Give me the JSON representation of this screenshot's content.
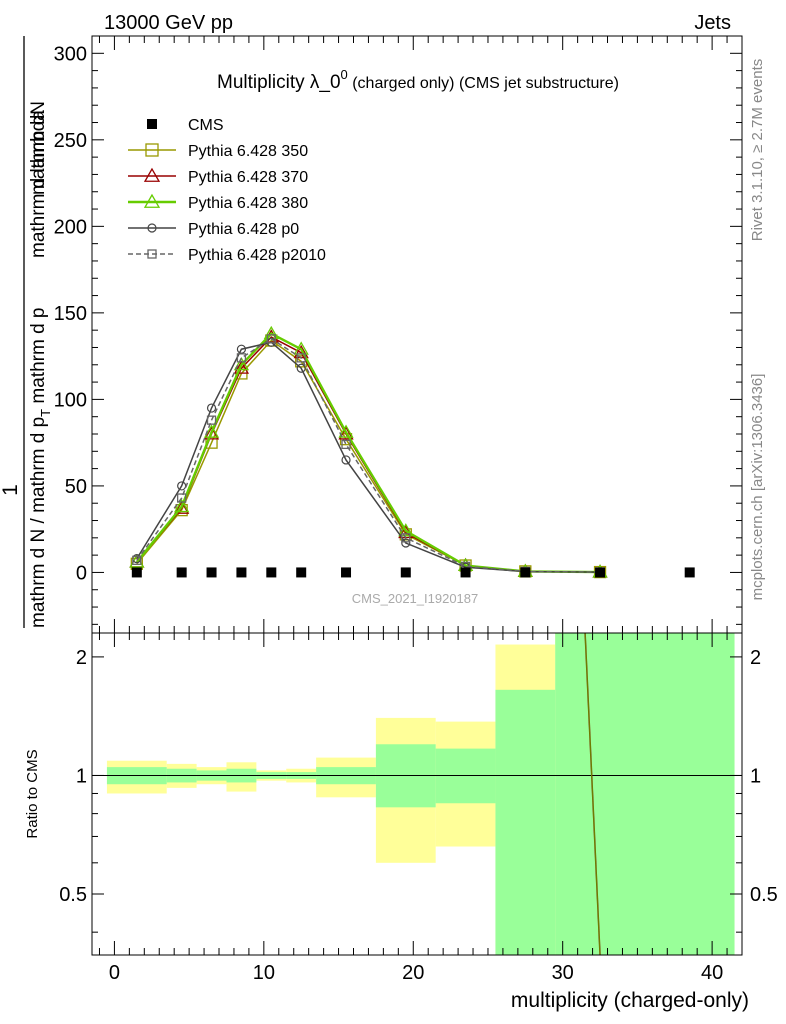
{
  "header": {
    "left": "13000 GeV pp",
    "right": "Jets"
  },
  "side_labels": {
    "rivet": "Rivet 3.1.10, ≥ 2.7M events",
    "mcplots": "mcplots.cern.ch [arXiv:1306.3436]"
  },
  "chart_data": [
    {
      "type": "line",
      "title_main": "Multiplicity λ_0",
      "title_sup": "0",
      "title_suffix": " (charged only) (CMS jet substructure)",
      "watermark": "CMS_2021_I1920187",
      "ylabel_numerator": "mathrm dN",
      "ylabel_denominator": "mathrm d N / mathrm d p",
      "ylabel_sub": "T",
      "ylabel_rest": " mathrm d p",
      "ylabel_end": "mathrm d lambda",
      "ylabel_one": "1",
      "xlim": [
        -1.5,
        42
      ],
      "ylim": [
        -35,
        310
      ],
      "yticks": [
        0,
        50,
        100,
        150,
        200,
        250,
        300
      ],
      "ytick_labels": [
        "0",
        "50",
        "100",
        "150",
        "200",
        "250",
        "300"
      ],
      "cms": {
        "name": "CMS",
        "x": [
          1.5,
          4.5,
          6.5,
          8.5,
          10.5,
          12.5,
          15.5,
          19.5,
          23.5,
          27.5,
          32.5,
          38.5
        ],
        "y": [
          0,
          0,
          0,
          0,
          0,
          0,
          0,
          0,
          0,
          0,
          0,
          0
        ]
      },
      "series": [
        {
          "name": "Pythia 6.428 350",
          "color": "#999900",
          "marker": "square",
          "dash": false,
          "x": [
            1.5,
            4.5,
            6.5,
            8.5,
            10.5,
            12.5,
            15.5,
            19.5,
            23.5,
            27.5,
            32.5
          ],
          "y": [
            5,
            36,
            75,
            115,
            134,
            122,
            77,
            22,
            4,
            0.6,
            0.2
          ]
        },
        {
          "name": "Pythia 6.428 370",
          "color": "#990000",
          "marker": "triangle",
          "dash": false,
          "x": [
            1.5,
            4.5,
            6.5,
            8.5,
            10.5,
            12.5,
            15.5,
            19.5,
            23.5,
            27.5,
            32.5
          ],
          "y": [
            6,
            37,
            80,
            118,
            136,
            127,
            80,
            23,
            4,
            0.6,
            0.2
          ]
        },
        {
          "name": "Pythia 6.428 380",
          "color": "#66cc00",
          "marker": "triangle",
          "dash": false,
          "x": [
            1.5,
            4.5,
            6.5,
            8.5,
            10.5,
            12.5,
            15.5,
            19.5,
            23.5,
            27.5,
            32.5
          ],
          "y": [
            6,
            38,
            81,
            120,
            138,
            129,
            81,
            24,
            4,
            0.6,
            0.2
          ]
        },
        {
          "name": "Pythia 6.428 p0",
          "color": "#444444",
          "marker": "circle",
          "dash": false,
          "x": [
            1.5,
            4.5,
            6.5,
            8.5,
            10.5,
            12.5,
            15.5,
            19.5,
            23.5,
            27.5,
            32.5
          ],
          "y": [
            8,
            50,
            95,
            129,
            133,
            118,
            65,
            17,
            3,
            0.5,
            0.2
          ]
        },
        {
          "name": "Pythia 6.428 p2010",
          "color": "#666666",
          "marker": "square",
          "dash": true,
          "x": [
            1.5,
            4.5,
            6.5,
            8.5,
            10.5,
            12.5,
            15.5,
            19.5,
            23.5,
            27.5,
            32.5
          ],
          "y": [
            7,
            43,
            88,
            124,
            135,
            124,
            74,
            20,
            3.5,
            0.6,
            0.2
          ]
        }
      ]
    },
    {
      "type": "area",
      "ylabel": "Ratio to CMS",
      "xlabel": "multiplicity (charged-only)",
      "xlim": [
        -1.5,
        42
      ],
      "ylim": [
        0.35,
        2.3
      ],
      "xticks": [
        0,
        10,
        20,
        30,
        40
      ],
      "xtick_labels": [
        "0",
        "10",
        "20",
        "30",
        "40"
      ],
      "yticks": [
        0.5,
        1,
        2
      ],
      "ytick_labels": [
        "0.5",
        "1",
        "2"
      ],
      "bins": [
        {
          "lo": -0.5,
          "hi": 3.5,
          "y1lo": 0.9,
          "y1hi": 1.09,
          "y2lo": 0.95,
          "y2hi": 1.05
        },
        {
          "lo": 3.5,
          "hi": 5.5,
          "y1lo": 0.93,
          "y1hi": 1.07,
          "y2lo": 0.96,
          "y2hi": 1.04
        },
        {
          "lo": 5.5,
          "hi": 7.5,
          "y1lo": 0.95,
          "y1hi": 1.05,
          "y2lo": 0.97,
          "y2hi": 1.03
        },
        {
          "lo": 7.5,
          "hi": 9.5,
          "y1lo": 0.91,
          "y1hi": 1.08,
          "y2lo": 0.96,
          "y2hi": 1.04
        },
        {
          "lo": 9.5,
          "hi": 11.5,
          "y1lo": 0.97,
          "y1hi": 1.03,
          "y2lo": 0.98,
          "y2hi": 1.02
        },
        {
          "lo": 11.5,
          "hi": 13.5,
          "y1lo": 0.96,
          "y1hi": 1.04,
          "y2lo": 0.98,
          "y2hi": 1.02
        },
        {
          "lo": 13.5,
          "hi": 17.5,
          "y1lo": 0.88,
          "y1hi": 1.11,
          "y2lo": 0.95,
          "y2hi": 1.05
        },
        {
          "lo": 17.5,
          "hi": 21.5,
          "y1lo": 0.6,
          "y1hi": 1.4,
          "y2lo": 0.83,
          "y2hi": 1.2
        },
        {
          "lo": 21.5,
          "hi": 25.5,
          "y1lo": 0.66,
          "y1hi": 1.37,
          "y2lo": 0.85,
          "y2hi": 1.17
        },
        {
          "lo": 25.5,
          "hi": 29.5,
          "y1lo": 0.35,
          "y1hi": 2.15,
          "y2lo": 0.35,
          "y2hi": 1.65
        },
        {
          "lo": 29.5,
          "hi": 41.5,
          "y1lo": 0.35,
          "y1hi": 2.3,
          "y2lo": 0.35,
          "y2hi": 2.3
        }
      ],
      "ratio_line": {
        "x": [
          31.5,
          32.5
        ],
        "y": [
          2.3,
          0.35
        ]
      }
    }
  ]
}
